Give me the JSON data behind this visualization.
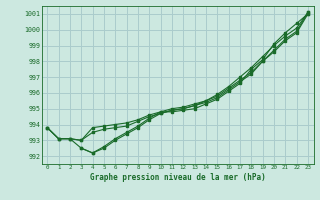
{
  "bg_color": "#cce8e0",
  "grid_color": "#aacccc",
  "line_color": "#1a6b2a",
  "title": "Graphe pression niveau de la mer (hPa)",
  "xlim": [
    -0.5,
    23.5
  ],
  "ylim": [
    991.5,
    1001.5
  ],
  "yticks": [
    992,
    993,
    994,
    995,
    996,
    997,
    998,
    999,
    1000,
    1001
  ],
  "xticks": [
    0,
    1,
    2,
    3,
    4,
    5,
    6,
    7,
    8,
    9,
    10,
    11,
    12,
    13,
    14,
    15,
    16,
    17,
    18,
    19,
    20,
    21,
    22,
    23
  ],
  "line1_x": [
    0,
    1,
    2,
    3,
    4,
    5,
    6,
    7,
    8,
    9,
    10,
    11,
    12,
    13,
    14,
    15,
    16,
    17,
    18,
    19,
    20,
    21,
    22,
    23
  ],
  "line1_y": [
    993.8,
    993.1,
    993.1,
    992.5,
    992.2,
    992.6,
    993.1,
    993.5,
    993.9,
    994.4,
    994.8,
    994.8,
    994.9,
    995.0,
    995.3,
    995.6,
    996.1,
    996.6,
    997.5,
    998.1,
    999.1,
    999.8,
    1000.4,
    1001.0
  ],
  "line2_x": [
    0,
    1,
    2,
    3,
    4,
    5,
    6,
    7,
    8,
    9,
    10,
    11,
    12,
    13,
    14,
    15,
    16,
    17,
    18,
    19,
    20,
    21,
    22,
    23
  ],
  "line2_y": [
    993.8,
    993.1,
    993.1,
    993.0,
    993.5,
    993.7,
    993.8,
    993.9,
    994.2,
    994.5,
    994.7,
    994.9,
    995.0,
    995.2,
    995.5,
    995.8,
    996.3,
    996.8,
    997.3,
    998.0,
    998.7,
    999.4,
    999.9,
    1001.1
  ],
  "line3_x": [
    0,
    1,
    2,
    3,
    4,
    5,
    6,
    7,
    8,
    9,
    10,
    11,
    12,
    13,
    14,
    15,
    16,
    17,
    18,
    19,
    20,
    21,
    22,
    23
  ],
  "line3_y": [
    993.8,
    993.1,
    993.1,
    993.0,
    993.8,
    993.9,
    994.0,
    994.1,
    994.3,
    994.6,
    994.8,
    995.0,
    995.1,
    995.3,
    995.5,
    995.9,
    996.4,
    997.0,
    997.6,
    998.3,
    999.0,
    999.6,
    1000.1,
    1001.1
  ],
  "line4_x": [
    3,
    4,
    5,
    6,
    7,
    8,
    9,
    10,
    11,
    12,
    13,
    14,
    15,
    16,
    17,
    18,
    19,
    20,
    21,
    22,
    23
  ],
  "line4_y": [
    992.5,
    992.2,
    992.5,
    993.0,
    993.4,
    993.8,
    994.3,
    994.7,
    994.9,
    995.0,
    995.2,
    995.4,
    995.7,
    996.2,
    996.7,
    997.2,
    998.0,
    998.6,
    999.3,
    999.8,
    1001.0
  ]
}
